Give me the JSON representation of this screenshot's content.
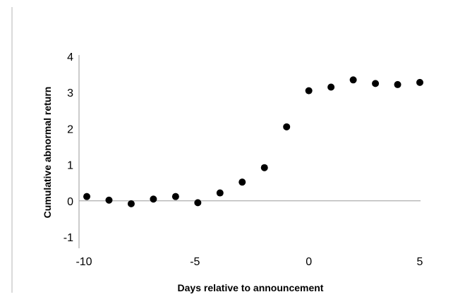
{
  "chart_data": {
    "type": "scatter",
    "title": "",
    "xlabel": "Days relative to announcement",
    "ylabel": "Cumulative abnormal return",
    "xlim": [
      -10,
      5
    ],
    "ylim": [
      -1,
      4
    ],
    "x_ticks": [
      -10,
      -5,
      0,
      5
    ],
    "y_ticks": [
      -1,
      0,
      1,
      2,
      3,
      4
    ],
    "grid": false,
    "legend": "none",
    "marker_color": "#000000",
    "axis_color": "#999999",
    "series": [
      {
        "x": [
          -10,
          -9,
          -8,
          -7,
          -6,
          -5,
          -4,
          -3,
          -2,
          -1,
          0,
          1,
          2,
          3,
          4,
          5
        ],
        "y": [
          0.12,
          0.02,
          -0.08,
          0.05,
          0.12,
          -0.05,
          0.22,
          0.52,
          0.92,
          2.05,
          3.05,
          3.15,
          3.35,
          3.25,
          3.22,
          3.28
        ]
      }
    ]
  }
}
